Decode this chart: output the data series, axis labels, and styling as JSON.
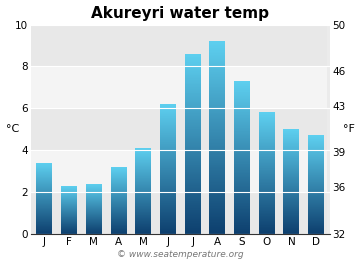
{
  "title": "Akureyri water temp",
  "months": [
    "J",
    "F",
    "M",
    "A",
    "M",
    "J",
    "J",
    "A",
    "S",
    "O",
    "N",
    "D"
  ],
  "temps_c": [
    3.4,
    2.3,
    2.4,
    3.2,
    4.1,
    6.2,
    8.6,
    9.2,
    7.3,
    5.8,
    5.0,
    4.7
  ],
  "ylim_c": [
    0,
    10
  ],
  "ylim_f": [
    32,
    50
  ],
  "yticks_c": [
    0,
    2,
    4,
    6,
    8,
    10
  ],
  "yticks_f": [
    32,
    36,
    39,
    43,
    46,
    50
  ],
  "ylabel_left": "°C",
  "ylabel_right": "°F",
  "bar_color_top": "#5dcfef",
  "bar_color_bottom": "#0d3f6e",
  "bg_plot_light": "#ebebeb",
  "bg_plot_dark": "#dcdcdc",
  "bg_figure": "#ffffff",
  "watermark": "© www.seatemperature.org",
  "title_fontsize": 11,
  "axis_label_fontsize": 8,
  "tick_fontsize": 7.5,
  "watermark_fontsize": 6.5,
  "bar_width": 0.65,
  "num_segments": 200
}
